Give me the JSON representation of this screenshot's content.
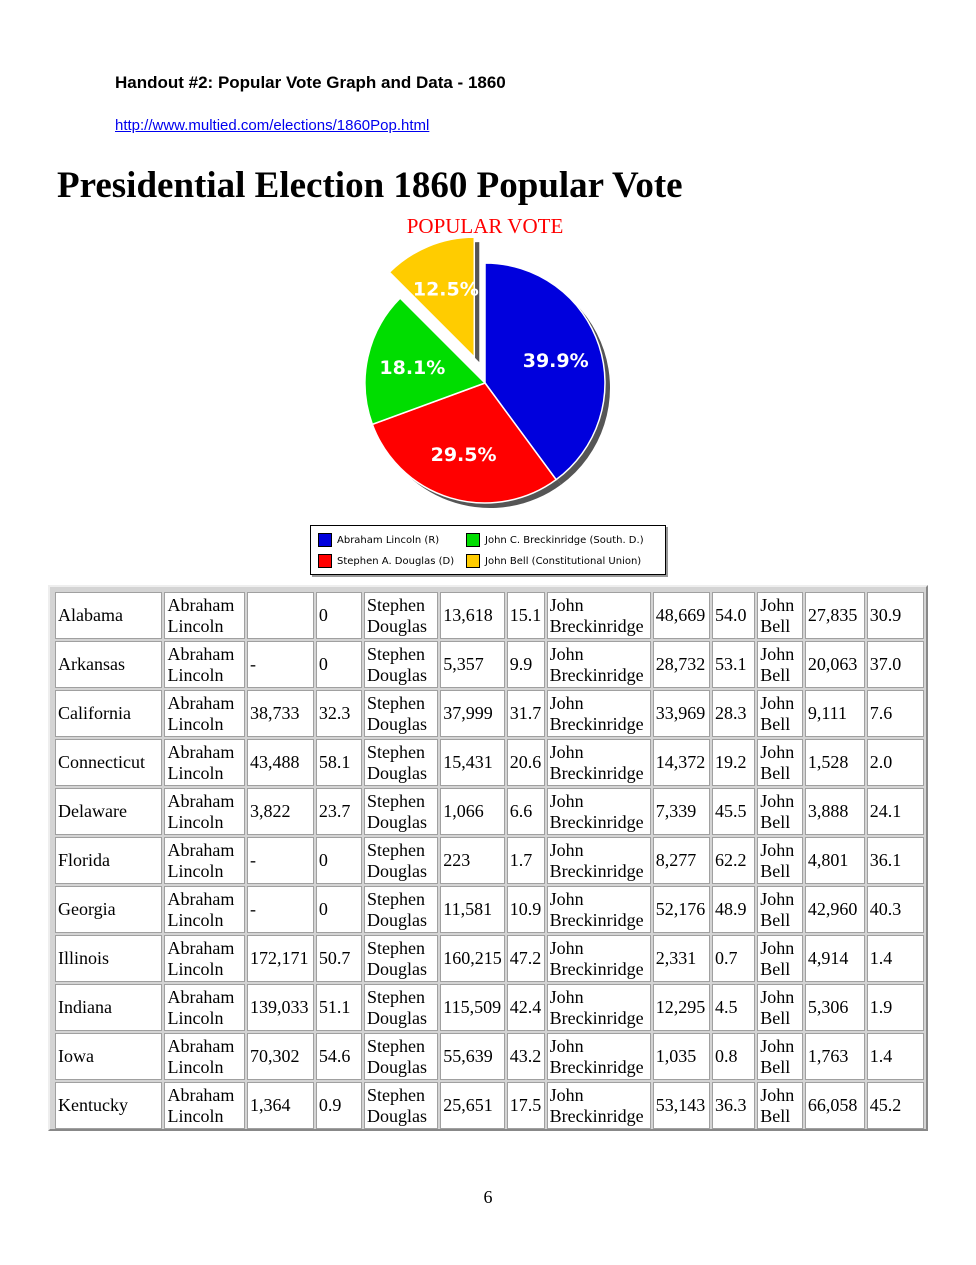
{
  "header": {
    "handout_title": "Handout  #2: Popular Vote Graph and Data - 1860",
    "source_url": "http://www.multied.com/elections/1860Pop.html"
  },
  "main_title": "Presidential Election 1860 Popular Vote",
  "chart_data": {
    "type": "pie",
    "title": "POPULAR VOTE",
    "slices": [
      {
        "label": "Abraham Lincoln (R)",
        "value": 39.9,
        "value_label": "39.9%",
        "color": "#0000dd"
      },
      {
        "label": "Stephen A. Douglas (D)",
        "value": 29.5,
        "value_label": "29.5%",
        "color": "#ff0000"
      },
      {
        "label": "John C. Breckinridge (South. D.)",
        "value": 18.1,
        "value_label": "18.1%",
        "color": "#00dd00"
      },
      {
        "label": "John Bell (Constitutional Union)",
        "value": 12.5,
        "value_label": "12.5%",
        "color": "#ffcc00",
        "exploded": true
      }
    ],
    "legend": [
      {
        "label": "Abraham Lincoln (R)",
        "color": "#0000dd"
      },
      {
        "label": "John C. Breckinridge (South. D.)",
        "color": "#00dd00"
      },
      {
        "label": "Stephen A. Douglas (D)",
        "color": "#ff0000"
      },
      {
        "label": "John Bell (Constitutional Union)",
        "color": "#ffcc00"
      }
    ],
    "legend_position": "bottom"
  },
  "table": {
    "rows": [
      [
        "Alabama",
        "Abraham Lincoln",
        "",
        "0",
        "Stephen Douglas",
        "13,618",
        "15.1",
        "John Breckinridge",
        "48,669",
        "54.0",
        "John Bell",
        "27,835",
        "30.9"
      ],
      [
        "Arkansas",
        "Abraham Lincoln",
        "-",
        "0",
        "Stephen Douglas",
        "5,357",
        "9.9",
        "John Breckinridge",
        "28,732",
        "53.1",
        "John Bell",
        "20,063",
        "37.0"
      ],
      [
        "California",
        "Abraham Lincoln",
        "38,733",
        "32.3",
        "Stephen Douglas",
        "37,999",
        "31.7",
        "John Breckinridge",
        "33,969",
        "28.3",
        "John Bell",
        "9,111",
        "7.6"
      ],
      [
        "Connecticut",
        "Abraham Lincoln",
        "43,488",
        "58.1",
        "Stephen Douglas",
        "15,431",
        "20.6",
        "John Breckinridge",
        "14,372",
        "19.2",
        "John Bell",
        "1,528",
        "2.0"
      ],
      [
        "Delaware",
        "Abraham Lincoln",
        "3,822",
        "23.7",
        "Stephen Douglas",
        "1,066",
        "6.6",
        "John Breckinridge",
        "7,339",
        "45.5",
        "John Bell",
        "3,888",
        "24.1"
      ],
      [
        "Florida",
        "Abraham Lincoln",
        "-",
        "0",
        "Stephen Douglas",
        "223",
        "1.7",
        "John Breckinridge",
        "8,277",
        "62.2",
        "John Bell",
        "4,801",
        "36.1"
      ],
      [
        "Georgia",
        "Abraham Lincoln",
        "-",
        "0",
        "Stephen Douglas",
        "11,581",
        "10.9",
        "John Breckinridge",
        "52,176",
        "48.9",
        "John Bell",
        "42,960",
        "40.3"
      ],
      [
        "Illinois",
        "Abraham Lincoln",
        "172,171",
        "50.7",
        "Stephen Douglas",
        "160,215",
        "47.2",
        "John Breckinridge",
        "2,331",
        "0.7",
        "John Bell",
        "4,914",
        "1.4"
      ],
      [
        "Indiana",
        "Abraham Lincoln",
        "139,033",
        "51.1",
        "Stephen Douglas",
        "115,509",
        "42.4",
        "John Breckinridge",
        "12,295",
        "4.5",
        "John Bell",
        "5,306",
        "1.9"
      ],
      [
        "Iowa",
        "Abraham Lincoln",
        "70,302",
        "54.6",
        "Stephen Douglas",
        "55,639",
        "43.2",
        "John Breckinridge",
        "1,035",
        "0.8",
        "John Bell",
        "1,763",
        "1.4"
      ],
      [
        "Kentucky",
        "Abraham Lincoln",
        "1,364",
        "0.9",
        "Stephen Douglas",
        "25,651",
        "17.5",
        "John Breckinridge",
        "53,143",
        "36.3",
        "John Bell",
        "66,058",
        "45.2"
      ]
    ]
  },
  "footer": {
    "page_number": "6"
  }
}
